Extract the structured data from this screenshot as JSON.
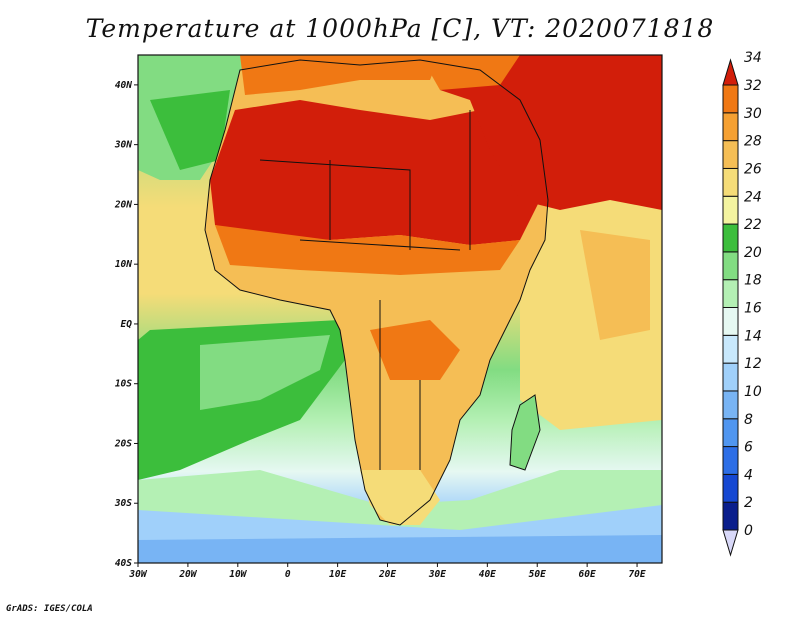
{
  "title": "Temperature at 1000hPa [C], VT: 2020071818",
  "credit": "GrADS: IGES/COLA",
  "map": {
    "lon_range": [
      -30,
      75
    ],
    "lat_range": [
      -40,
      45
    ],
    "x_ticks": [
      {
        "lon": -30,
        "label": "30W"
      },
      {
        "lon": -20,
        "label": "20W"
      },
      {
        "lon": -10,
        "label": "10W"
      },
      {
        "lon": 0,
        "label": "0"
      },
      {
        "lon": 10,
        "label": "10E"
      },
      {
        "lon": 20,
        "label": "20E"
      },
      {
        "lon": 30,
        "label": "30E"
      },
      {
        "lon": 40,
        "label": "40E"
      },
      {
        "lon": 50,
        "label": "50E"
      },
      {
        "lon": 60,
        "label": "60E"
      },
      {
        "lon": 70,
        "label": "70E"
      }
    ],
    "y_ticks": [
      {
        "lat": 40,
        "label": "40N"
      },
      {
        "lat": 30,
        "label": "30N"
      },
      {
        "lat": 20,
        "label": "20N"
      },
      {
        "lat": 10,
        "label": "10N"
      },
      {
        "lat": 0,
        "label": "EQ"
      },
      {
        "lat": -10,
        "label": "10S"
      },
      {
        "lat": -20,
        "label": "20S"
      },
      {
        "lat": -30,
        "label": "30S"
      },
      {
        "lat": -40,
        "label": "40S"
      }
    ]
  },
  "colorbar": {
    "levels": [
      "0",
      "2",
      "4",
      "6",
      "8",
      "10",
      "12",
      "14",
      "16",
      "18",
      "20",
      "22",
      "24",
      "26",
      "28",
      "30",
      "32",
      "34"
    ],
    "colors": [
      "#0a1e8c",
      "#1648d2",
      "#2d6ee6",
      "#5096f0",
      "#78b4f4",
      "#a0d0fa",
      "#c8e8fc",
      "#e6f8f2",
      "#b4f0b4",
      "#82dc82",
      "#3cbe3c",
      "#f4f4a0",
      "#f5dc78",
      "#f5be55",
      "#f5a032",
      "#f07814",
      "#e64614",
      "#d21e0a"
    ]
  }
}
